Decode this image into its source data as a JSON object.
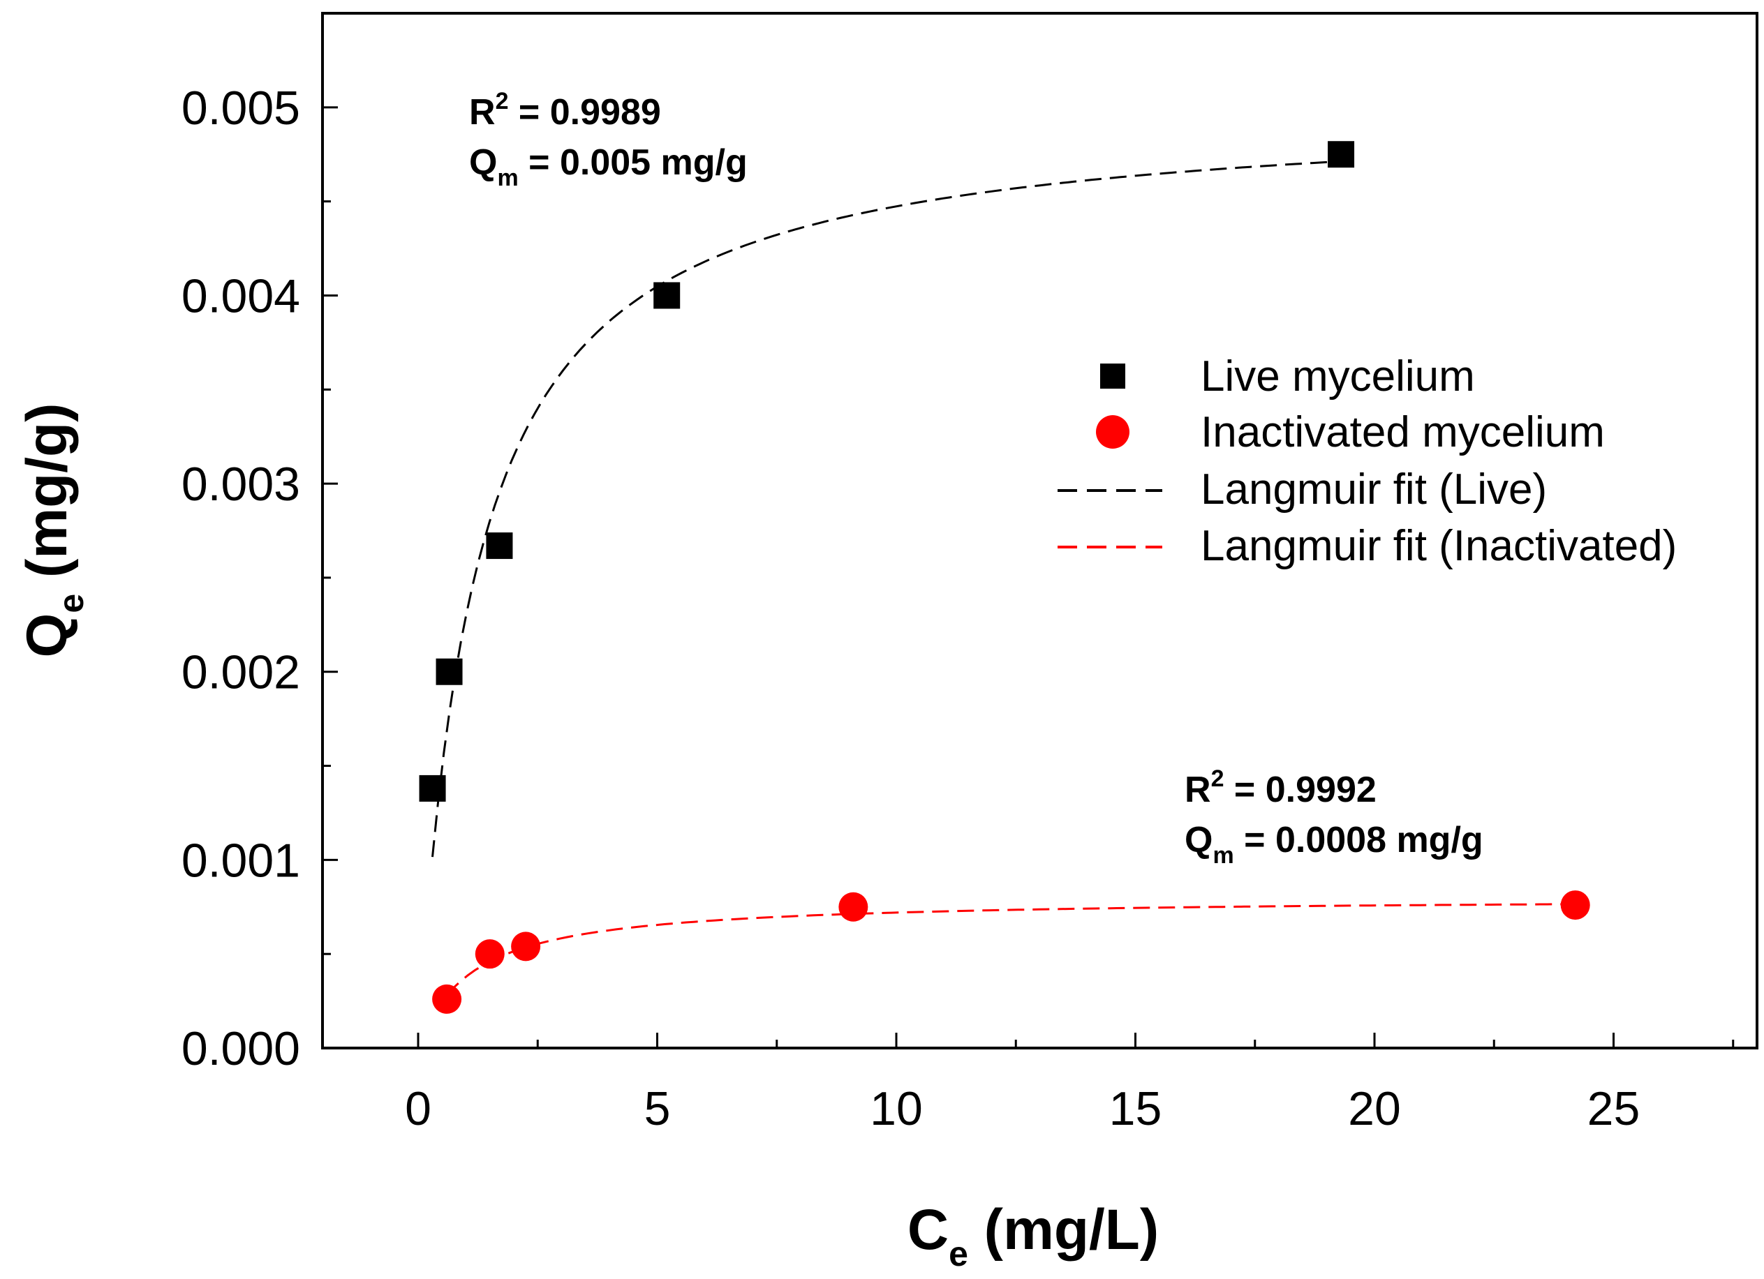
{
  "chart_data": {
    "type": "scatter",
    "x_axis": {
      "label_main": "C",
      "label_sub": "e",
      "label_unit": " (mg/L)",
      "range": [
        -2,
        28
      ],
      "major_ticks": [
        0,
        5,
        10,
        15,
        20,
        25
      ],
      "tick_labels": [
        "0",
        "5",
        "10",
        "15",
        "20",
        "25"
      ],
      "minor_step": 2.5
    },
    "y_axis": {
      "label_main": "Q",
      "label_sub": "e",
      "label_unit": " (mg/g)",
      "range": [
        0,
        0.0055
      ],
      "major_ticks": [
        0,
        0.001,
        0.002,
        0.003,
        0.004,
        0.005
      ],
      "tick_labels": [
        "0.000",
        "0.001",
        "0.002",
        "0.003",
        "0.004",
        "0.005"
      ],
      "minor_step": 0.0005
    },
    "grid": false,
    "legend_position": "right",
    "legend": [
      {
        "label": "Live mycelium",
        "kind": "square-marker",
        "color": "#000000"
      },
      {
        "label": "Inactivated mycelium",
        "kind": "circle-marker",
        "color": "#ff0000"
      },
      {
        "label": "Langmuir fit (Live)",
        "kind": "dashed-line",
        "color": "#000000"
      },
      {
        "label": "Langmuir fit (Inactivated)",
        "kind": "dashed-line",
        "color": "#ff0000"
      }
    ],
    "series": [
      {
        "name": "Live mycelium",
        "marker": "square",
        "color": "#000000",
        "x": [
          0.3,
          0.65,
          1.7,
          5.2,
          19.3
        ],
        "y": [
          0.00138,
          0.002,
          0.00267,
          0.004,
          0.00475
        ]
      },
      {
        "name": "Inactivated mycelium",
        "marker": "circle",
        "color": "#ff0000",
        "x": [
          0.6,
          1.5,
          2.25,
          9.1,
          24.2
        ],
        "y": [
          0.00026,
          0.0005,
          0.00054,
          0.00075,
          0.00076
        ]
      }
    ],
    "fits": [
      {
        "name": "Langmuir fit (Live)",
        "color": "#000000",
        "qm": 0.005,
        "kl": 0.85,
        "x_range": [
          0.3,
          19.3
        ]
      },
      {
        "name": "Langmuir fit (Inactivated)",
        "color": "#ff0000",
        "qm": 0.0008,
        "kl": 0.9,
        "x_range": [
          0.6,
          24.2
        ]
      }
    ],
    "annotations": [
      {
        "r2_label": "R",
        "r2_sup": "2",
        "r2_value": " = 0.9989",
        "qm_label": "Q",
        "qm_sub": "m",
        "qm_value": " = 0.005 mg/g"
      },
      {
        "r2_label": "R",
        "r2_sup": "2",
        "r2_value": " = 0.9992",
        "qm_label": "Q",
        "qm_sub": "m",
        "qm_value": " = 0.0008 mg/g"
      }
    ]
  }
}
